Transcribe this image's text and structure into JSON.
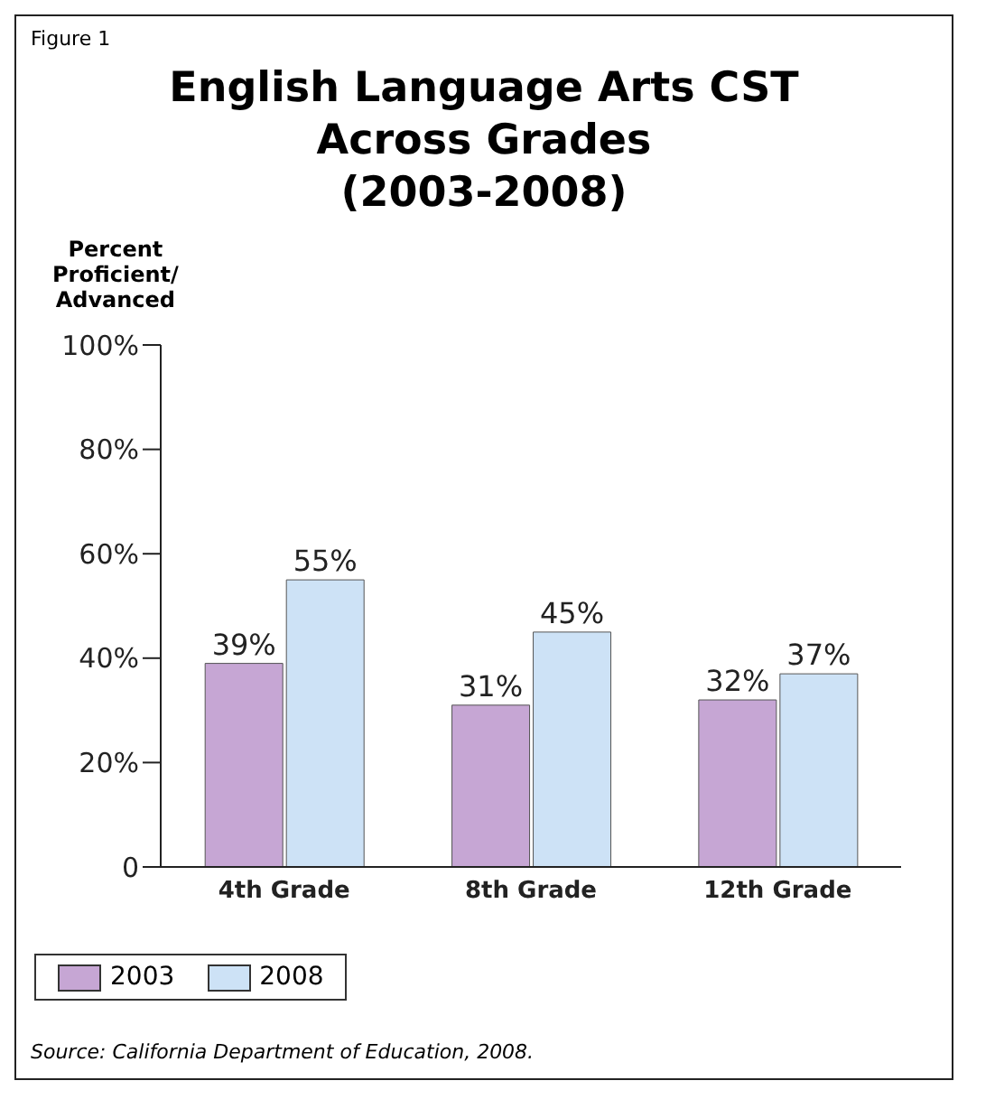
{
  "chart_data": {
    "type": "bar",
    "title": "English Language Arts CST\nAcross Grades\n(2003-2008)",
    "ylabel": "Percent\nProficient/\nAdvanced",
    "annotations": [
      "Figure 1",
      "Source: California Department of Education, 2008."
    ],
    "categories": [
      "4th Grade",
      "8th Grade",
      "12th Grade"
    ],
    "series": [
      {
        "name": "2003",
        "color": "#c6a6d4",
        "values": [
          39,
          31,
          32
        ],
        "value_labels": [
          "39%",
          "31%",
          "32%"
        ]
      },
      {
        "name": "2008",
        "color": "#cde2f6",
        "values": [
          55,
          45,
          37
        ],
        "value_labels": [
          "55%",
          "45%",
          "37%"
        ]
      }
    ],
    "ylim": [
      0,
      100
    ],
    "yticks": [
      0,
      {
        "value": 20,
        "label": "20%"
      },
      {
        "value": 40,
        "label": "40%"
      },
      {
        "value": 60,
        "label": "60%"
      },
      {
        "value": 80,
        "label": "80%"
      },
      {
        "value": 100,
        "label": "100%"
      }
    ],
    "grid": false,
    "legend": "bottom"
  }
}
